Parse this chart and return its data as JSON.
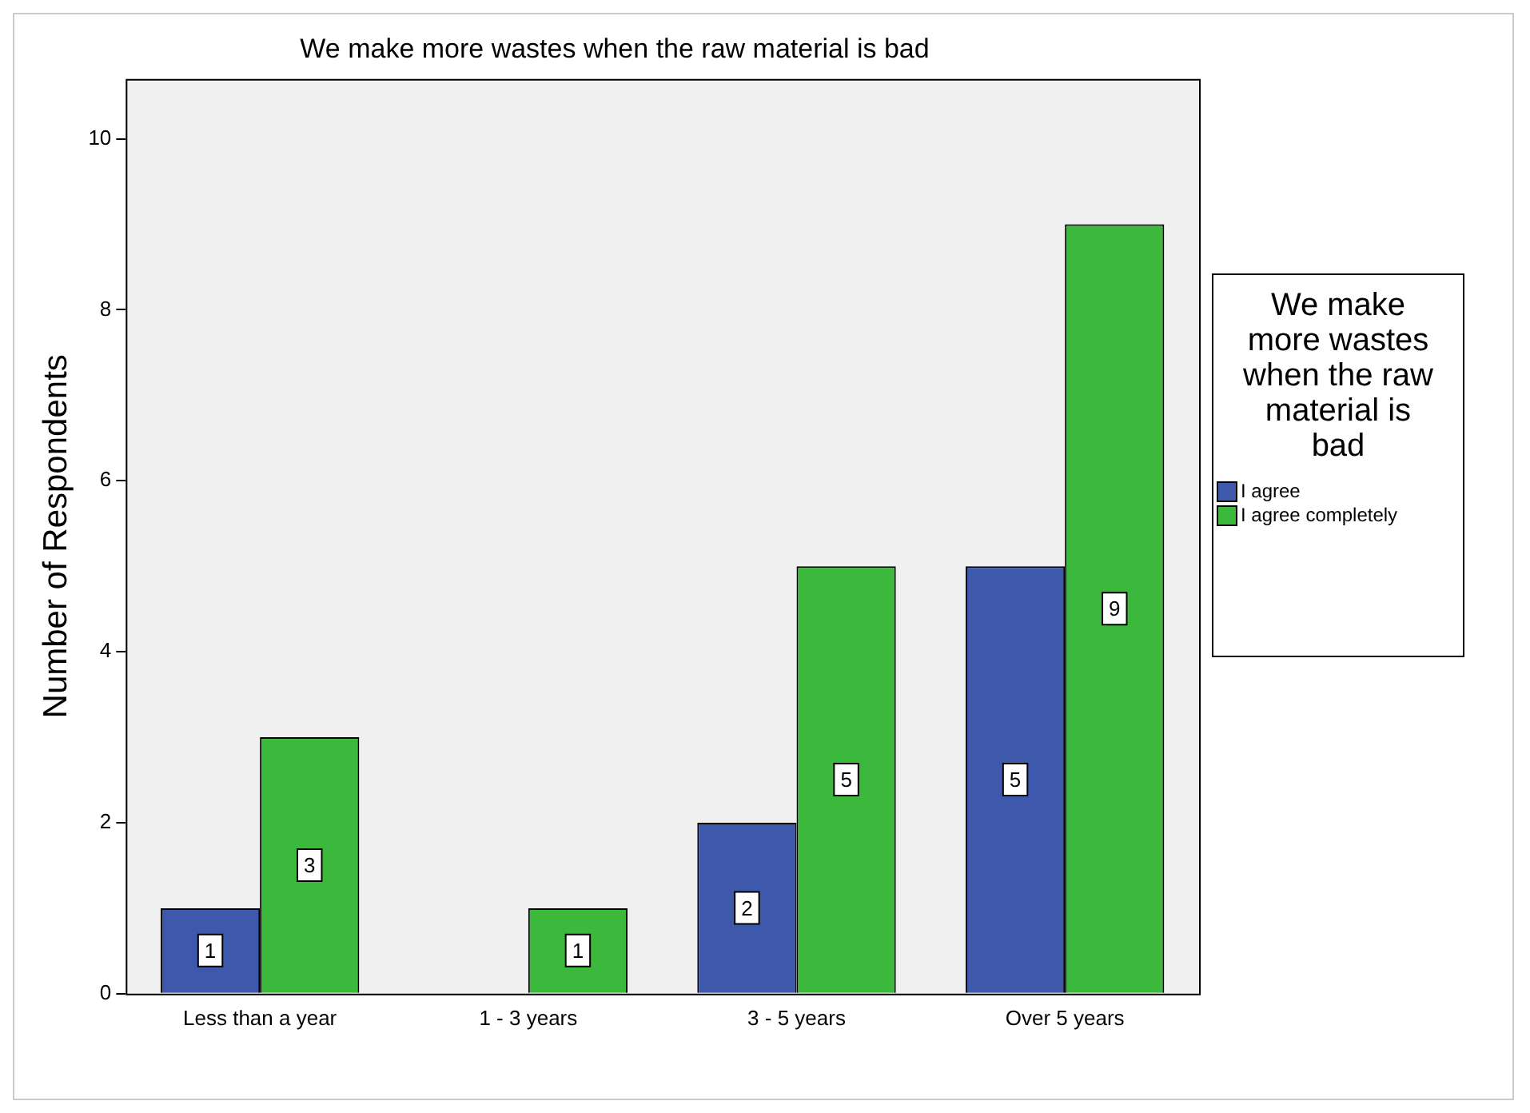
{
  "chart_data": {
    "type": "bar",
    "title": "We make more wastes when the raw material is bad",
    "ylabel": "Number of Respondents",
    "legend_title": "We make more wastes when the raw material is bad",
    "categories": [
      "Less than a year",
      "1 - 3 years",
      "3 - 5 years",
      "Over 5 years"
    ],
    "series": [
      {
        "name": "I agree",
        "color": "#3e58ac",
        "values": [
          1,
          null,
          2,
          5
        ]
      },
      {
        "name": "I agree completely",
        "color": "#3cb93c",
        "values": [
          3,
          1,
          5,
          9
        ]
      }
    ],
    "ylim": [
      0,
      10.7
    ],
    "yticks": [
      0,
      2,
      4,
      6,
      8,
      10
    ],
    "grid": false,
    "legend": "right",
    "data_labels": true
  }
}
